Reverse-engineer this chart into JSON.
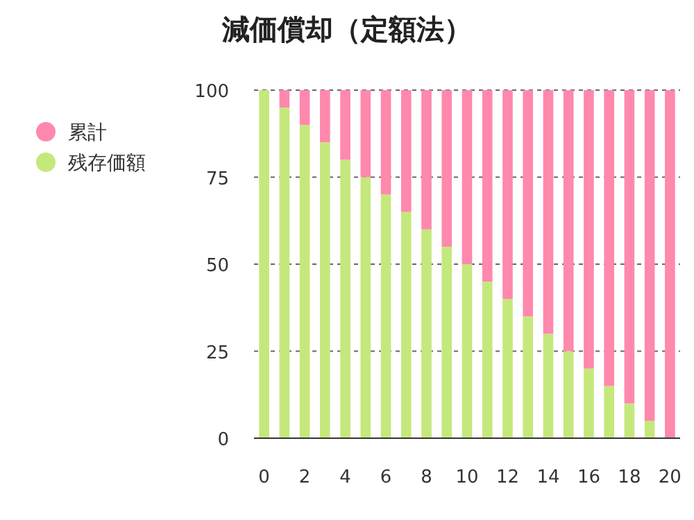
{
  "chart_data": {
    "type": "bar",
    "title": "減価償却（定額法）",
    "stacked": true,
    "categories": [
      "0",
      null,
      "2",
      null,
      "4",
      null,
      "6",
      null,
      "8",
      null,
      "10",
      null,
      "12",
      null,
      "14",
      null,
      "16",
      null,
      "18",
      null,
      "20"
    ],
    "series": [
      {
        "name": "残存価額",
        "color": "#c5e87c",
        "values": [
          100,
          95,
          90,
          85,
          80,
          75,
          70,
          65,
          60,
          55,
          50,
          45,
          40,
          35,
          30,
          25,
          20,
          15,
          10,
          5,
          0
        ]
      },
      {
        "name": "累計",
        "color": "#ff88ad",
        "values": [
          0,
          5,
          10,
          15,
          20,
          25,
          30,
          35,
          40,
          45,
          50,
          55,
          60,
          65,
          70,
          75,
          80,
          85,
          90,
          95,
          100
        ]
      }
    ],
    "ylim": [
      0,
      100
    ],
    "yticks": [
      0,
      25,
      50,
      75,
      100
    ],
    "grid": "y",
    "legend": "top left"
  }
}
